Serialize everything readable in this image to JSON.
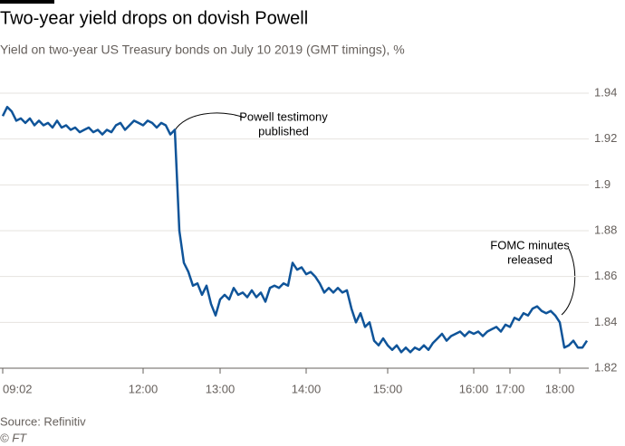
{
  "chart_data": {
    "type": "line",
    "title": "Two-year yield drops on dovish Powell",
    "subtitle": "Yield on two-year US Treasury bonds on July 10 2019 (GMT timings), %",
    "source": "Source: Refinitiv",
    "credit": "© FT",
    "annotations": [
      {
        "lines": [
          "Powell testimony",
          "published"
        ]
      },
      {
        "lines": [
          "FOMC minutes",
          "released"
        ]
      }
    ],
    "categories": [
      "09:02",
      null,
      null,
      null,
      null,
      null,
      null,
      null,
      null,
      null,
      null,
      null,
      null,
      null,
      null,
      null,
      null,
      null,
      null,
      null,
      null,
      null,
      null,
      null,
      null,
      null,
      null,
      null,
      null,
      null,
      null,
      "12:00",
      null,
      null,
      null,
      null,
      null,
      null,
      null,
      null,
      null,
      null,
      null,
      null,
      null,
      null,
      null,
      null,
      "13:00",
      null,
      null,
      null,
      null,
      null,
      null,
      null,
      null,
      null,
      null,
      null,
      null,
      null,
      null,
      null,
      null,
      null,
      null,
      "14:00",
      null,
      null,
      null,
      null,
      null,
      null,
      null,
      null,
      null,
      null,
      null,
      null,
      null,
      null,
      null,
      null,
      null,
      "15:00",
      null,
      null,
      null,
      null,
      null,
      null,
      null,
      null,
      null,
      null,
      null,
      null,
      null,
      null,
      null,
      null,
      null,
      null,
      "16:00",
      null,
      null,
      null,
      null,
      null,
      null,
      null,
      "17:00",
      null,
      null,
      null,
      null,
      null,
      null,
      null,
      null,
      null,
      null,
      "18:00",
      null,
      null,
      null,
      null,
      null,
      null
    ],
    "series": [
      {
        "name": "Two-year yield",
        "color": "#0f5499",
        "values": [
          1.93,
          1.934,
          1.932,
          1.928,
          1.929,
          1.927,
          1.929,
          1.926,
          1.928,
          1.926,
          1.927,
          1.925,
          1.928,
          1.925,
          1.926,
          1.924,
          1.925,
          1.923,
          1.924,
          1.925,
          1.923,
          1.924,
          1.922,
          1.924,
          1.923,
          1.926,
          1.927,
          1.924,
          1.926,
          1.928,
          1.927,
          1.926,
          1.928,
          1.927,
          1.925,
          1.927,
          1.926,
          1.922,
          1.924,
          1.88,
          1.866,
          1.862,
          1.856,
          1.857,
          1.852,
          1.856,
          1.848,
          1.843,
          1.85,
          1.852,
          1.85,
          1.855,
          1.852,
          1.853,
          1.851,
          1.854,
          1.851,
          1.853,
          1.849,
          1.855,
          1.856,
          1.855,
          1.857,
          1.856,
          1.866,
          1.863,
          1.864,
          1.861,
          1.862,
          1.86,
          1.857,
          1.853,
          1.855,
          1.853,
          1.855,
          1.853,
          1.854,
          1.846,
          1.84,
          1.844,
          1.838,
          1.84,
          1.832,
          1.83,
          1.833,
          1.83,
          1.828,
          1.83,
          1.827,
          1.829,
          1.827,
          1.829,
          1.828,
          1.83,
          1.828,
          1.831,
          1.833,
          1.835,
          1.832,
          1.834,
          1.835,
          1.836,
          1.834,
          1.836,
          1.835,
          1.836,
          1.834,
          1.836,
          1.837,
          1.838,
          1.836,
          1.839,
          1.838,
          1.842,
          1.841,
          1.844,
          1.843,
          1.846,
          1.847,
          1.845,
          1.844,
          1.845,
          1.843,
          1.84,
          1.829,
          1.83,
          1.832,
          1.829,
          1.829,
          1.832
        ]
      }
    ],
    "ylim": [
      1.82,
      1.94
    ],
    "yticks": [
      1.94,
      1.92,
      1.9,
      1.88,
      1.86,
      1.84,
      1.82
    ],
    "grid": true
  }
}
